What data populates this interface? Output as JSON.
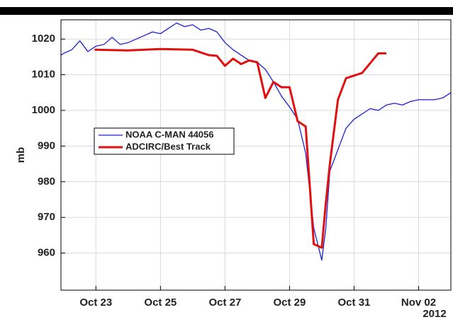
{
  "chart_data": {
    "type": "line",
    "y_label": "mb",
    "x_offset_label": "2012",
    "xlim": [
      "2012-10-21T22:00",
      "2012-11-03T00:00"
    ],
    "xticks": [
      {
        "value": "2012-10-23T00:00",
        "label": "Oct 23"
      },
      {
        "value": "2012-10-25T00:00",
        "label": "Oct 25"
      },
      {
        "value": "2012-10-27T00:00",
        "label": "Oct 27"
      },
      {
        "value": "2012-10-29T00:00",
        "label": "Oct 29"
      },
      {
        "value": "2012-10-31T00:00",
        "label": "Oct 31"
      },
      {
        "value": "2012-11-02T00:00",
        "label": "Nov 02"
      }
    ],
    "ylim": [
      950,
      1025
    ],
    "yticks": [
      960,
      970,
      980,
      990,
      1000,
      1010,
      1020
    ],
    "grid": true,
    "series": [
      {
        "name": "NOAA C-MAN 44056",
        "color": "#1f1fd6",
        "width": 1.3,
        "x": [
          "2012-10-21T22:00",
          "2012-10-22T00:00",
          "2012-10-22T06:00",
          "2012-10-22T12:00",
          "2012-10-22T18:00",
          "2012-10-23T00:00",
          "2012-10-23T06:00",
          "2012-10-23T12:00",
          "2012-10-23T18:00",
          "2012-10-24T00:00",
          "2012-10-24T06:00",
          "2012-10-24T12:00",
          "2012-10-24T18:00",
          "2012-10-25T00:00",
          "2012-10-25T06:00",
          "2012-10-25T12:00",
          "2012-10-25T18:00",
          "2012-10-26T00:00",
          "2012-10-26T06:00",
          "2012-10-26T12:00",
          "2012-10-26T18:00",
          "2012-10-27T00:00",
          "2012-10-27T06:00",
          "2012-10-27T12:00",
          "2012-10-27T18:00",
          "2012-10-28T00:00",
          "2012-10-28T06:00",
          "2012-10-28T12:00",
          "2012-10-28T18:00",
          "2012-10-29T00:00",
          "2012-10-29T06:00",
          "2012-10-29T12:00",
          "2012-10-29T18:00",
          "2012-10-30T00:00",
          "2012-10-30T03:00",
          "2012-10-30T06:00",
          "2012-10-30T12:00",
          "2012-10-30T18:00",
          "2012-10-31T00:00",
          "2012-10-31T06:00",
          "2012-10-31T12:00",
          "2012-10-31T18:00",
          "2012-11-01T00:00",
          "2012-11-01T06:00",
          "2012-11-01T12:00",
          "2012-11-01T18:00",
          "2012-11-02T00:00",
          "2012-11-02T06:00",
          "2012-11-02T12:00",
          "2012-11-02T18:00",
          "2012-11-03T00:00"
        ],
        "values": [
          1015.5,
          1016,
          1017,
          1019.5,
          1016.5,
          1018,
          1018.5,
          1020.5,
          1018.5,
          1019,
          1020,
          1021,
          1022,
          1021.5,
          1023,
          1024.5,
          1023.5,
          1024,
          1022.5,
          1023,
          1022,
          1019,
          1017,
          1015.5,
          1014,
          1013.5,
          1011.5,
          1008,
          1004,
          1001,
          997.5,
          988,
          967,
          958,
          967,
          983,
          989,
          995,
          997.5,
          999,
          1000.5,
          1000,
          1001.5,
          1002,
          1001.5,
          1002.5,
          1003,
          1003,
          1003,
          1003.5,
          1005
        ]
      },
      {
        "name": "ADCIRC/Best Track",
        "color": "#e01010",
        "width": 3,
        "x": [
          "2012-10-22T23:00",
          "2012-10-24T00:00",
          "2012-10-25T00:00",
          "2012-10-26T00:00",
          "2012-10-26T12:00",
          "2012-10-26T18:00",
          "2012-10-27T00:00",
          "2012-10-27T06:00",
          "2012-10-27T12:00",
          "2012-10-27T18:00",
          "2012-10-28T00:00",
          "2012-10-28T06:00",
          "2012-10-28T12:00",
          "2012-10-28T18:00",
          "2012-10-29T00:00",
          "2012-10-29T06:00",
          "2012-10-29T12:00",
          "2012-10-29T18:00",
          "2012-10-30T00:00",
          "2012-10-30T03:00",
          "2012-10-30T06:00",
          "2012-10-30T12:00",
          "2012-10-30T18:00",
          "2012-10-31T06:00",
          "2012-10-31T18:00",
          "2012-11-01T00:00"
        ],
        "values": [
          1017,
          1016.8,
          1017.2,
          1017,
          1015.5,
          1015.3,
          1012.5,
          1014.5,
          1013,
          1014,
          1013.5,
          1003.5,
          1008,
          1006.5,
          1006.5,
          997,
          995.5,
          962.5,
          961.5,
          974,
          985,
          1003,
          1009,
          1010.5,
          1016,
          1016
        ]
      }
    ]
  }
}
